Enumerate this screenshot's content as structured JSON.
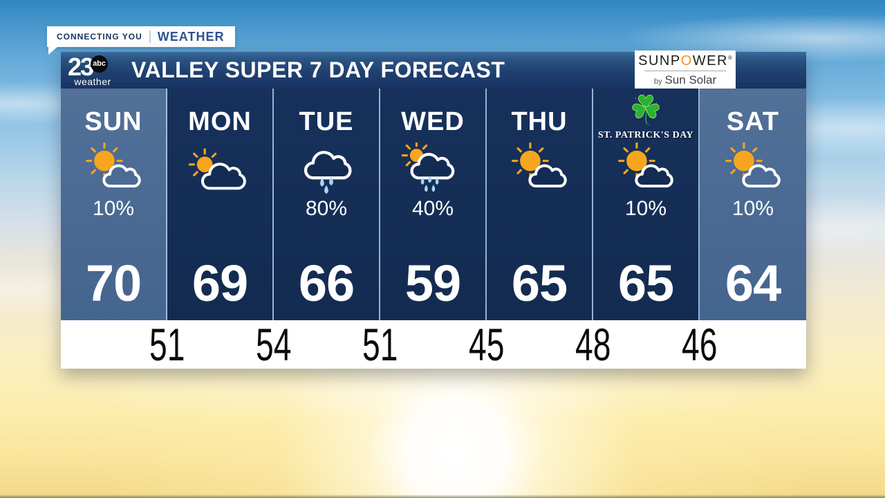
{
  "chart_data": {
    "type": "table",
    "title": "VALLEY SUPER 7 DAY FORECAST",
    "categories": [
      "SUN",
      "MON",
      "TUE",
      "WED",
      "THU",
      "ST. PATRICK'S DAY",
      "SAT"
    ],
    "series": [
      {
        "name": "High (F)",
        "values": [
          70,
          69,
          66,
          59,
          65,
          65,
          64
        ]
      },
      {
        "name": "Overnight low (F)",
        "values": [
          51,
          54,
          51,
          45,
          48,
          46
        ]
      },
      {
        "name": "Precipitation chance",
        "values": [
          "10%",
          "",
          "80%",
          "40%",
          "",
          "10%",
          "10%"
        ]
      },
      {
        "name": "Condition",
        "values": [
          "mostly sunny",
          "partly sunny",
          "rain",
          "sun with showers",
          "mostly sunny",
          "mostly sunny",
          "mostly sunny"
        ]
      }
    ]
  },
  "badge": {
    "left": "CONNECTING YOU",
    "right": "WEATHER"
  },
  "header": {
    "logo": {
      "number": "23",
      "abc": "abc",
      "sub": "weather"
    },
    "title": "VALLEY SUPER 7 DAY FORECAST",
    "sponsor": {
      "brand_prefix": "SUNP",
      "brand_o": "O",
      "brand_suffix": "WER",
      "registered": "®",
      "byline_by": "by",
      "byline_name": "Sun Solar"
    }
  },
  "forecast": {
    "days": [
      {
        "label": "SUN",
        "icon": "sun-cloud",
        "precip": "10%",
        "high": "70",
        "variant": "light"
      },
      {
        "label": "MON",
        "icon": "sun-behind-cloud",
        "precip": "",
        "high": "69",
        "variant": "dark"
      },
      {
        "label": "TUE",
        "icon": "rain-cloud",
        "precip": "80%",
        "high": "66",
        "variant": "dark"
      },
      {
        "label": "WED",
        "icon": "sun-rain-cloud",
        "precip": "40%",
        "high": "59",
        "variant": "dark"
      },
      {
        "label": "THU",
        "icon": "sun-cloud",
        "precip": "",
        "high": "65",
        "variant": "dark"
      },
      {
        "label": "",
        "icon": "sun-cloud",
        "precip": "10%",
        "high": "65",
        "variant": "dark",
        "holiday": {
          "icon": "shamrock",
          "label": "ST. PATRICK'S DAY"
        }
      },
      {
        "label": "SAT",
        "icon": "sun-cloud",
        "precip": "10%",
        "high": "64",
        "variant": "light"
      }
    ],
    "lows": [
      "51",
      "54",
      "51",
      "45",
      "48",
      "46"
    ]
  },
  "colors": {
    "column_dark": "#142c52",
    "column_light": "#4b6b96",
    "sun_orange": "#f6a51e",
    "rain_drop": "#a6d8f5",
    "shamrock_green": "#28b42f",
    "low_text": "#0a0a0a"
  }
}
